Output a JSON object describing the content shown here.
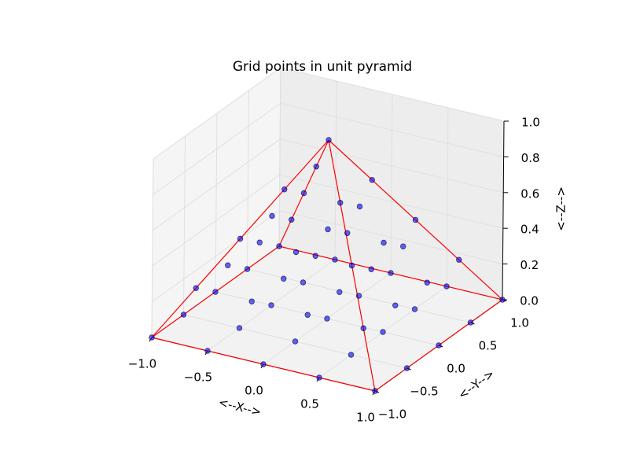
{
  "chart_data": {
    "type": "scatter3d",
    "title": "Grid points in unit pyramid",
    "xlabel": "<--X-->",
    "ylabel": "<--Y-->",
    "zlabel": "<--Z-->",
    "x": [
      -1,
      -1,
      -1,
      -1,
      -1,
      -0.5,
      -0.5,
      -0.5,
      -0.5,
      -0.5,
      0,
      0,
      0,
      0,
      0,
      0.5,
      0.5,
      0.5,
      0.5,
      0.5,
      1,
      1,
      1,
      1,
      1,
      -0.75,
      -0.75,
      -0.75,
      -0.75,
      -0.25,
      -0.25,
      -0.25,
      -0.25,
      0.25,
      0.25,
      0.25,
      0.25,
      0.75,
      0.75,
      0.75,
      0.75,
      -0.5,
      -0.5,
      -0.5,
      0,
      0,
      0,
      0.5,
      0.5,
      0.5,
      -0.25,
      -0.25,
      0.25,
      0.25,
      0
    ],
    "y": [
      -1,
      -0.5,
      0,
      0.5,
      1,
      -1,
      -0.5,
      0,
      0.5,
      1,
      -1,
      -0.5,
      0,
      0.5,
      1,
      -1,
      -0.5,
      0,
      0.5,
      1,
      -1,
      -0.5,
      0,
      0.5,
      1,
      -0.75,
      -0.25,
      0.25,
      0.75,
      -0.75,
      -0.25,
      0.25,
      0.75,
      -0.75,
      -0.25,
      0.25,
      0.75,
      -0.75,
      -0.25,
      0.25,
      0.75,
      -0.5,
      0,
      0.5,
      -0.5,
      0,
      0.5,
      -0.5,
      0,
      0.5,
      -0.25,
      0.25,
      -0.25,
      0.25,
      0
    ],
    "z": [
      0,
      0,
      0,
      0,
      0,
      0,
      0,
      0,
      0,
      0,
      0,
      0,
      0,
      0,
      0,
      0,
      0,
      0,
      0,
      0,
      0,
      0,
      0,
      0,
      0,
      0.25,
      0.25,
      0.25,
      0.25,
      0.25,
      0.25,
      0.25,
      0.25,
      0.25,
      0.25,
      0.25,
      0.25,
      0.25,
      0.25,
      0.25,
      0.25,
      0.5,
      0.5,
      0.5,
      0.5,
      0.5,
      0.5,
      0.5,
      0.5,
      0.5,
      0.75,
      0.75,
      0.75,
      0.75,
      1
    ],
    "color": "#0000ff",
    "edge_color": "#ff0000",
    "grid": true,
    "xlim": [
      -1,
      1
    ],
    "ylim": [
      -1,
      1
    ],
    "zlim": [
      0,
      1
    ],
    "xticks": [
      {
        "value": -1,
        "label": "−1.0"
      },
      {
        "value": -0.5,
        "label": "−0.5"
      },
      {
        "value": 0,
        "label": "0.0"
      },
      {
        "value": 0.5,
        "label": "0.5"
      },
      {
        "value": 1,
        "label": "1.0"
      }
    ],
    "yticks": [
      {
        "value": -1,
        "label": "−1.0"
      },
      {
        "value": -0.5,
        "label": "−0.5"
      },
      {
        "value": 0,
        "label": "0.0"
      },
      {
        "value": 0.5,
        "label": "0.5"
      },
      {
        "value": 1,
        "label": "1.0"
      }
    ],
    "zticks": [
      {
        "value": 0,
        "label": "0.0"
      },
      {
        "value": 0.2,
        "label": "0.2"
      },
      {
        "value": 0.4,
        "label": "0.4"
      },
      {
        "value": 0.6,
        "label": "0.6"
      },
      {
        "value": 0.8,
        "label": "0.8"
      },
      {
        "value": 1,
        "label": "1.0"
      }
    ]
  }
}
